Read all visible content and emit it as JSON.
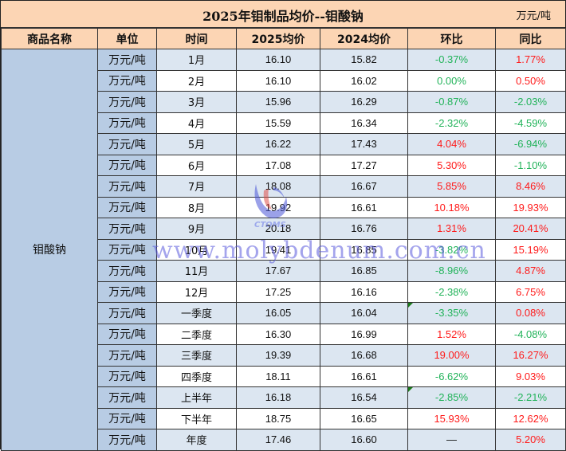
{
  "title": "2025年钼制品均价--钼酸钠",
  "unit_label": "万元/吨",
  "headers": [
    "商品名称",
    "单位",
    "时间",
    "2025均价",
    "2024均价",
    "环比",
    "同比"
  ],
  "product": "钼酸钠",
  "colors": {
    "header_bg": "#fcd5b4",
    "product_bg": "#b8cce4",
    "stripe_bg": "#dce6f1",
    "up": "#ff1a1a",
    "down": "#22b35a"
  },
  "rows": [
    {
      "unit": "万元/吨",
      "period": "1月",
      "p2025": "16.10",
      "p2024": "15.82",
      "mom": "-0.37%",
      "mom_dir": "down",
      "yoy": "1.77%",
      "yoy_dir": "up"
    },
    {
      "unit": "万元/吨",
      "period": "2月",
      "p2025": "16.10",
      "p2024": "16.02",
      "mom": "0.00%",
      "mom_dir": "down",
      "yoy": "0.50%",
      "yoy_dir": "up"
    },
    {
      "unit": "万元/吨",
      "period": "3月",
      "p2025": "15.96",
      "p2024": "16.29",
      "mom": "-0.87%",
      "mom_dir": "down",
      "yoy": "-2.03%",
      "yoy_dir": "down"
    },
    {
      "unit": "万元/吨",
      "period": "4月",
      "p2025": "15.59",
      "p2024": "16.34",
      "mom": "-2.32%",
      "mom_dir": "down",
      "yoy": "-4.59%",
      "yoy_dir": "down"
    },
    {
      "unit": "万元/吨",
      "period": "5月",
      "p2025": "16.22",
      "p2024": "17.43",
      "mom": "4.04%",
      "mom_dir": "up",
      "yoy": "-6.94%",
      "yoy_dir": "down"
    },
    {
      "unit": "万元/吨",
      "period": "6月",
      "p2025": "17.08",
      "p2024": "17.27",
      "mom": "5.30%",
      "mom_dir": "up",
      "yoy": "-1.10%",
      "yoy_dir": "down"
    },
    {
      "unit": "万元/吨",
      "period": "7月",
      "p2025": "18.08",
      "p2024": "16.67",
      "mom": "5.85%",
      "mom_dir": "up",
      "yoy": "8.46%",
      "yoy_dir": "up"
    },
    {
      "unit": "万元/吨",
      "period": "8月",
      "p2025": "19.92",
      "p2024": "16.61",
      "mom": "10.18%",
      "mom_dir": "up",
      "yoy": "19.93%",
      "yoy_dir": "up"
    },
    {
      "unit": "万元/吨",
      "period": "9月",
      "p2025": "20.18",
      "p2024": "16.76",
      "mom": "1.31%",
      "mom_dir": "up",
      "yoy": "20.41%",
      "yoy_dir": "up"
    },
    {
      "unit": "万元/吨",
      "period": "10月",
      "p2025": "19.41",
      "p2024": "16.85",
      "mom": "-3.82%",
      "mom_dir": "down",
      "yoy": "15.19%",
      "yoy_dir": "up"
    },
    {
      "unit": "万元/吨",
      "period": "11月",
      "p2025": "17.67",
      "p2024": "16.85",
      "mom": "-8.96%",
      "mom_dir": "down",
      "yoy": "4.87%",
      "yoy_dir": "up"
    },
    {
      "unit": "万元/吨",
      "period": "12月",
      "p2025": "17.25",
      "p2024": "16.16",
      "mom": "-2.38%",
      "mom_dir": "down",
      "yoy": "6.75%",
      "yoy_dir": "up"
    },
    {
      "unit": "万元/吨",
      "period": "一季度",
      "p2025": "16.05",
      "p2024": "16.04",
      "mom": "-3.35%",
      "mom_dir": "down",
      "yoy": "0.08%",
      "yoy_dir": "up"
    },
    {
      "unit": "万元/吨",
      "period": "二季度",
      "p2025": "16.30",
      "p2024": "16.99",
      "mom": "1.52%",
      "mom_dir": "up",
      "yoy": "-4.08%",
      "yoy_dir": "down"
    },
    {
      "unit": "万元/吨",
      "period": "三季度",
      "p2025": "19.39",
      "p2024": "16.68",
      "mom": "19.00%",
      "mom_dir": "up",
      "yoy": "16.27%",
      "yoy_dir": "up"
    },
    {
      "unit": "万元/吨",
      "period": "四季度",
      "p2025": "18.11",
      "p2024": "16.61",
      "mom": "-6.62%",
      "mom_dir": "down",
      "yoy": "9.03%",
      "yoy_dir": "up"
    },
    {
      "unit": "万元/吨",
      "period": "上半年",
      "p2025": "16.18",
      "p2024": "16.54",
      "mom": "-2.85%",
      "mom_dir": "down",
      "yoy": "-2.21%",
      "yoy_dir": "down"
    },
    {
      "unit": "万元/吨",
      "period": "下半年",
      "p2025": "18.75",
      "p2024": "16.65",
      "mom": "15.93%",
      "mom_dir": "up",
      "yoy": "12.62%",
      "yoy_dir": "up"
    },
    {
      "unit": "万元/吨",
      "period": "年度",
      "p2025": "17.46",
      "p2024": "16.60",
      "mom": "—",
      "mom_dir": "dash",
      "yoy": "5.20%",
      "yoy_dir": "up"
    }
  ],
  "watermark": {
    "logo_text": "CTOMS",
    "url_text": "www.molybdenum.com.cn"
  }
}
